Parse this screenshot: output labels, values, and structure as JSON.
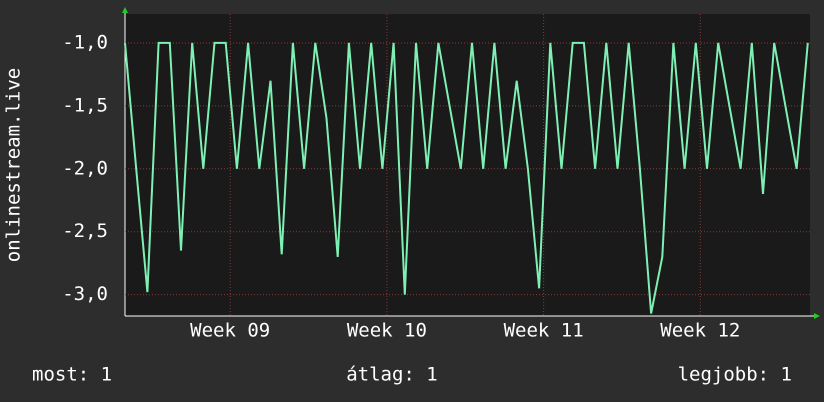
{
  "chart_data": {
    "type": "line",
    "ylabel": "onlinestream.live",
    "x": [
      0,
      0.5,
      1,
      1.5,
      2,
      2.5,
      3,
      3.5,
      4,
      4.5,
      5,
      5.5,
      6,
      6.5,
      7,
      7.5,
      8,
      8.5,
      9,
      9.5,
      10,
      10.5,
      11,
      11.5,
      12,
      12.5,
      13,
      13.5,
      14,
      14.5,
      15,
      15.5,
      16,
      16.5,
      17,
      17.5,
      18,
      18.5,
      19,
      19.5,
      20,
      20.5,
      21,
      21.5,
      22,
      22.5,
      23,
      23.5,
      24,
      24.5,
      25,
      25.5,
      26,
      26.5,
      27,
      27.5,
      28,
      28.5,
      29,
      29.5,
      30,
      30.5
    ],
    "series": [
      {
        "name": "onlinestream.live",
        "color": "#7ff0b4",
        "values": [
          -1,
          -2,
          -2.98,
          -1,
          -1,
          -2.65,
          -1,
          -2,
          -1,
          -1,
          -2,
          -1,
          -2,
          -1.3,
          -2.68,
          -1,
          -2,
          -1,
          -1.6,
          -2.7,
          -1,
          -2,
          -1,
          -2,
          -1,
          -3.0,
          -1,
          -2,
          -1,
          -1.5,
          -2,
          -1,
          -2,
          -1,
          -2,
          -1.3,
          -2,
          -2.95,
          -1,
          -2,
          -1,
          -1,
          -2,
          -1,
          -2,
          -1,
          -2,
          -3.15,
          -2.7,
          -1,
          -2,
          -1,
          -2,
          -1,
          -1.5,
          -2,
          -1,
          -2.2,
          -1,
          -1.5,
          -2,
          -1
        ]
      }
    ],
    "xlim": [
      0,
      30.6
    ],
    "xticks": [
      {
        "value": 4.7,
        "label": "Week 09"
      },
      {
        "value": 11.7,
        "label": "Week 10"
      },
      {
        "value": 18.7,
        "label": "Week 11"
      },
      {
        "value": 25.7,
        "label": "Week 12"
      }
    ],
    "ylim": [
      -3.17,
      -0.77
    ],
    "yticks": [
      {
        "value": -1.0,
        "label": "-1,0"
      },
      {
        "value": -1.5,
        "label": "-1,5"
      },
      {
        "value": -2.0,
        "label": "-2,0"
      },
      {
        "value": -2.5,
        "label": "-2,5"
      },
      {
        "value": -3.0,
        "label": "-3,0"
      }
    ],
    "grid": true,
    "footer": {
      "current": "most: 1",
      "average": "átlag: 1",
      "max": "legjobb: 1"
    }
  }
}
